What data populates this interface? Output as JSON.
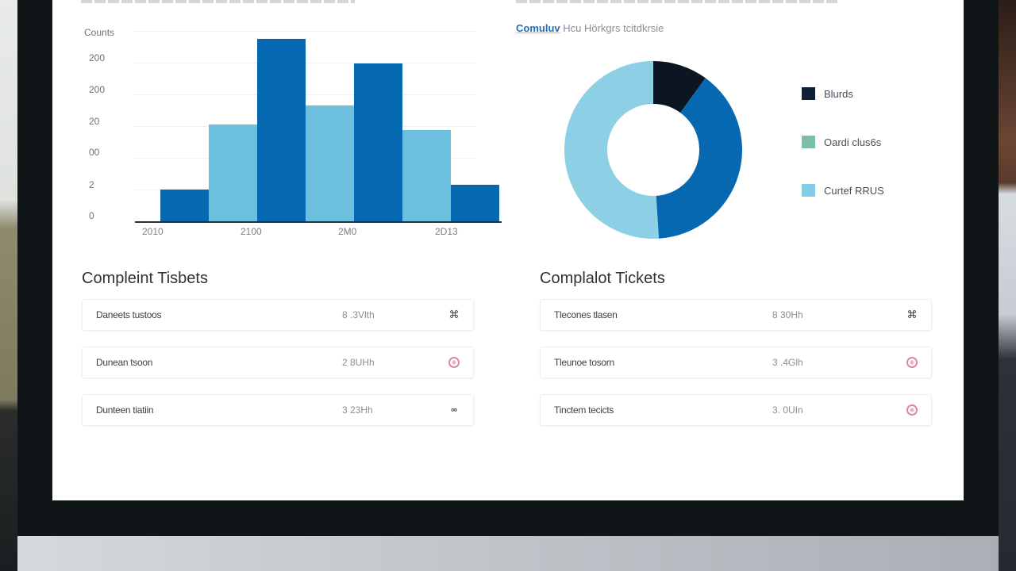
{
  "bar_chart": {
    "y_title": "Counts",
    "y_ticks": [
      "200",
      "200",
      "20",
      "00",
      "2",
      "0"
    ],
    "x_ticks": [
      "2010",
      "2100",
      "2M0",
      "2D13"
    ]
  },
  "donut_chart": {
    "title_highlight": "Comuluv",
    "title_rest": "Hcu Hörkgrs tcitdkrsie",
    "legend": [
      {
        "label": "Blurds",
        "color": "#0d2035"
      },
      {
        "label": "Oardi clus6s",
        "color": "#7bbfa6"
      },
      {
        "label": "Curtef RRUS",
        "color": "#83cde6"
      }
    ]
  },
  "tickets_left": {
    "title": "Compleint Tisbets",
    "rows": [
      {
        "name": "Daneets tustoos",
        "meta": "8 .3Vlth",
        "icon": "link-icon"
      },
      {
        "name": "Dunean tsoon",
        "meta": "2 8UHh",
        "icon": "alert-icon"
      },
      {
        "name": "Dunteen tiatiin",
        "meta": "3 23Hh",
        "icon": "link-icon"
      }
    ]
  },
  "tickets_right": {
    "title": "Complalot Tickets",
    "rows": [
      {
        "name": "Tlecones tlasen",
        "meta": "8 30Hh",
        "icon": "link-icon"
      },
      {
        "name": "Tleunoe tosorn",
        "meta": "3 .4Glh",
        "icon": "alert-icon"
      },
      {
        "name": "Tinctem tecicts",
        "meta": "3. 0UIn",
        "icon": "alert-icon"
      }
    ]
  },
  "colors": {
    "dark_blue": "#0668b0",
    "light_blue": "#6cc0de",
    "navy": "#0b1622",
    "donut_light": "#8dd0e6",
    "alert_icon": "#d98aa0"
  },
  "chart_data": [
    {
      "type": "bar",
      "title": "",
      "xlabel": "",
      "ylabel": "Counts",
      "categories": [
        "2010",
        "",
        "2100",
        "",
        "2M0",
        "",
        "2D13"
      ],
      "x_tick_labels": [
        "2010",
        "2100",
        "2M0",
        "2D13"
      ],
      "y_tick_labels": [
        "0",
        "2",
        "00",
        "20",
        "200",
        "200"
      ],
      "series": [
        {
          "name": "bars",
          "values": [
            38,
            117,
            220,
            140,
            190,
            110,
            44
          ],
          "colors": [
            "#0668b0",
            "#6cc0de",
            "#0668b0",
            "#6cc0de",
            "#0668b0",
            "#6cc0de",
            "#0668b0"
          ]
        }
      ],
      "ylim": [
        0,
        240
      ],
      "grid": true,
      "legend": "none"
    },
    {
      "type": "pie",
      "donut": true,
      "title": "Comuluv Hcu Hörkgrs tcitdkrsie",
      "labels": [
        "Blurds",
        "Oardi clus6s",
        "Curtef RRUS"
      ],
      "values": [
        10,
        39,
        51
      ],
      "slice_colors": [
        "#0b1622",
        "#0668b0",
        "#8dd0e6"
      ],
      "legend_colors": [
        "#0d2035",
        "#7bbfa6",
        "#83cde6"
      ],
      "legend_position": "right"
    }
  ]
}
